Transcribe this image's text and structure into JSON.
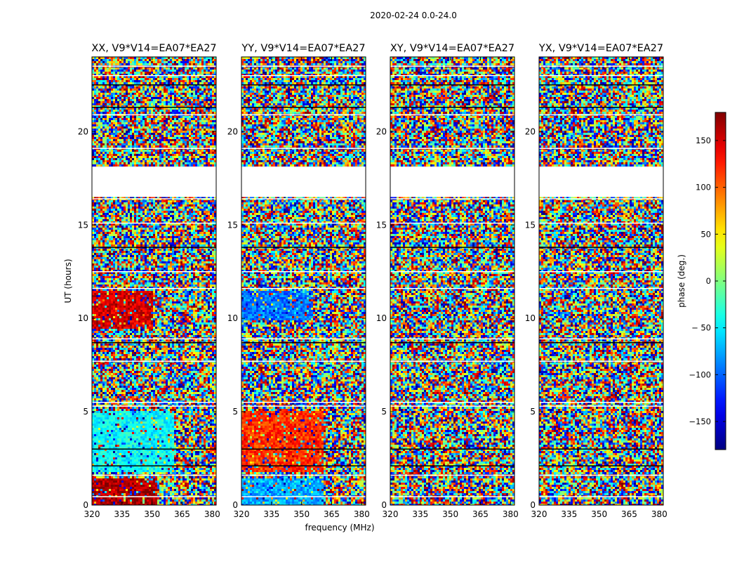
{
  "suptitle": "2020-02-24 0.0-24.0",
  "chart_data": {
    "type": "heatmap",
    "suptitle": "2020-02-24 0.0-24.0",
    "xlabel": "frequency (MHz)",
    "ylabel": "UT (hours)",
    "xlim": [
      320,
      382
    ],
    "ylim": [
      0,
      24
    ],
    "xticks": [
      320,
      335,
      350,
      365,
      380
    ],
    "yticks": [
      0,
      5,
      10,
      15,
      20
    ],
    "colormap": "jet",
    "colorbar": {
      "label": "phase (deg.)",
      "range": [
        -180,
        180
      ],
      "ticks": [
        150,
        100,
        50,
        0,
        -50,
        -100,
        -150
      ],
      "tick_labels": [
        "150",
        "100",
        "50",
        "0",
        "− 50",
        "−100",
        "−150"
      ]
    },
    "data_gaps_hours": [
      [
        18.1,
        16.5
      ]
    ],
    "panels": [
      {
        "title": "XX, V9*V14=EA07*EA27",
        "polarization": "XX",
        "regions": [
          {
            "t": [
              0.0,
              1.5
            ],
            "f": [
              320,
              352
            ],
            "phase_deg": 165,
            "note": "red, coherent"
          },
          {
            "t": [
              1.8,
              5.1
            ],
            "f": [
              320,
              360
            ],
            "phase_deg": -45,
            "note": "cyan, coherent"
          },
          {
            "t": [
              9.5,
              11.5
            ],
            "f": [
              320,
              350
            ],
            "phase_deg": 150,
            "note": "red band near 11 h"
          }
        ]
      },
      {
        "title": "YY, V9*V14=EA07*EA27",
        "polarization": "YY",
        "regions": [
          {
            "t": [
              0.0,
              1.5
            ],
            "f": [
              320,
              360
            ],
            "phase_deg": -75,
            "note": "cyan/blue"
          },
          {
            "t": [
              1.8,
              5.1
            ],
            "f": [
              320,
              360
            ],
            "phase_deg": 120,
            "note": "red-yellow"
          },
          {
            "t": [
              10.0,
              11.5
            ],
            "f": [
              320,
              355
            ],
            "phase_deg": -95,
            "note": "blue band"
          }
        ]
      },
      {
        "title": "XY, V9*V14=EA07*EA27",
        "polarization": "XY",
        "regions": []
      },
      {
        "title": "YX, V9*V14=EA07*EA27",
        "polarization": "YX",
        "regions": []
      }
    ]
  }
}
